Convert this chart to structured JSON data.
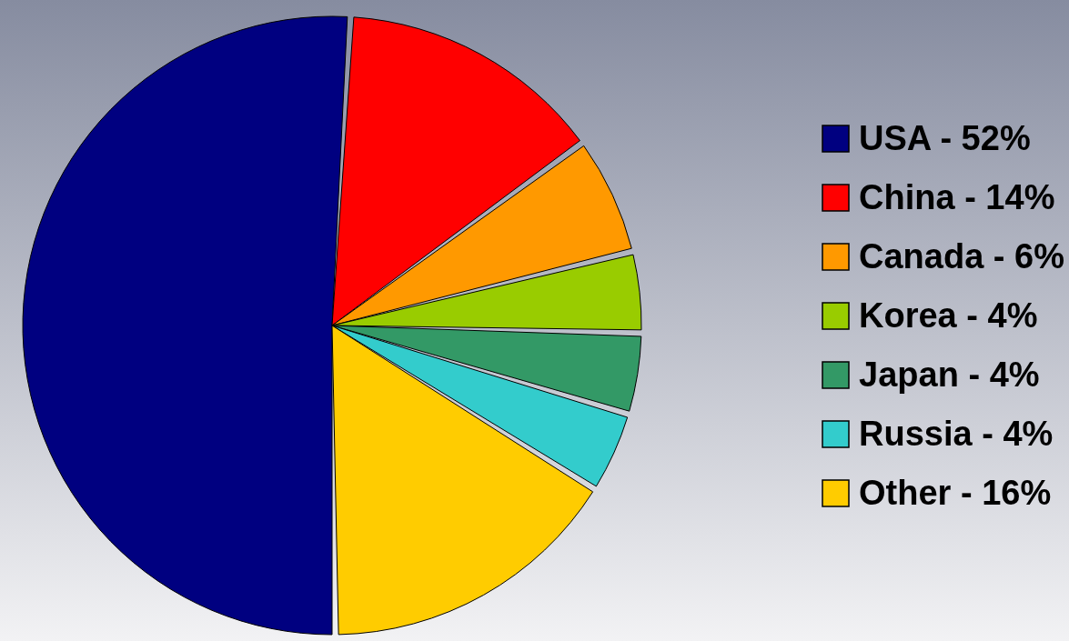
{
  "chart_data": {
    "type": "pie",
    "categories": [
      "USA - 52%",
      "China - 14%",
      "Canada - 6%",
      "Korea - 4%",
      "Japan - 4%",
      "Russia - 4%",
      "Other - 16%"
    ],
    "values": [
      52,
      14,
      6,
      4,
      4,
      4,
      16
    ],
    "colors": [
      "#000080",
      "#ff0000",
      "#ff9900",
      "#99cc00",
      "#339966",
      "#33cccc",
      "#ffcc00"
    ],
    "legend": "right"
  }
}
